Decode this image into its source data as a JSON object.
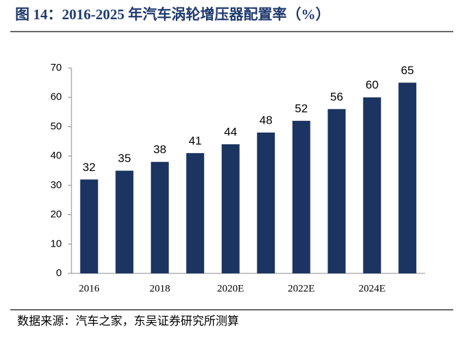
{
  "chart_data": {
    "type": "bar",
    "title": "图 14：2016-2025 年汽车涡轮增压器配置率（%）",
    "source": "数据来源：汽车之家，东吴证券研究所测算",
    "categories": [
      "2016",
      null,
      "2018",
      null,
      "2020E",
      null,
      "2022E",
      null,
      "2024E",
      null
    ],
    "values": [
      32,
      35,
      38,
      41,
      44,
      48,
      52,
      56,
      60,
      65
    ],
    "color": "#1b3461",
    "ylim": [
      0,
      70
    ],
    "yticks": [
      0,
      10,
      20,
      30,
      40,
      50,
      60,
      70
    ],
    "grid": false
  }
}
